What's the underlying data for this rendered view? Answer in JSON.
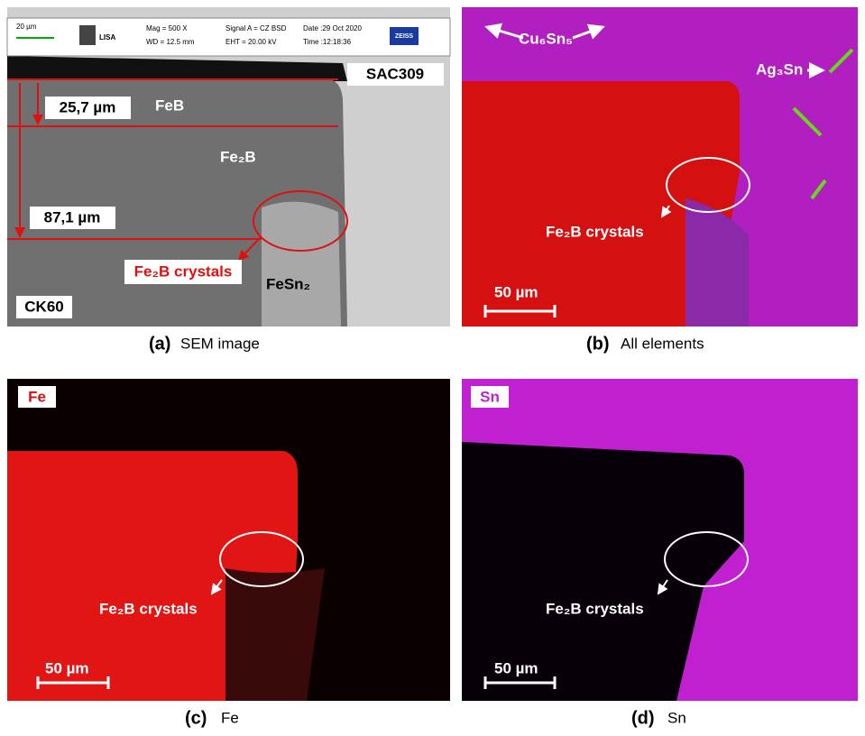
{
  "panel_a": {
    "header": {
      "scale": "20 µm",
      "logo": "LISA",
      "mag": "Mag =    500 X",
      "wd": "WD = 12.5 mm",
      "signal": "Signal A = CZ BSD",
      "eht": "EHT = 20.00 kV",
      "date": "Date :29 Oct 2020",
      "time": "Time :12:18:36",
      "brand": "ZEISS"
    },
    "labels": {
      "sac": "SAC309",
      "feb": "FeB",
      "thin": "25,7 µm",
      "fe2b": "Fe₂B",
      "thick": "87,1 µm",
      "crystals": "Fe₂B crystals",
      "fesn2": "FeSn₂",
      "ck60": "CK60"
    },
    "caption": {
      "letter": "(a)",
      "text": "SEM image"
    }
  },
  "panel_b": {
    "labels": {
      "cu6sn5": "Cu₆Sn₅",
      "ag3sn": "Ag₃Sn",
      "crystals": "Fe₂B crystals",
      "scale": "50 µm"
    },
    "caption": {
      "letter": "(b)",
      "text": "All elements"
    }
  },
  "panel_c": {
    "labels": {
      "element": "Fe",
      "crystals": "Fe₂B crystals",
      "scale": "50 µm"
    },
    "caption": {
      "letter": "(c)",
      "text": "Fe"
    }
  },
  "panel_d": {
    "labels": {
      "element": "Sn",
      "crystals": "Fe₂B crystals",
      "scale": "50 µm"
    },
    "caption": {
      "letter": "(d)",
      "text": "Sn"
    }
  }
}
